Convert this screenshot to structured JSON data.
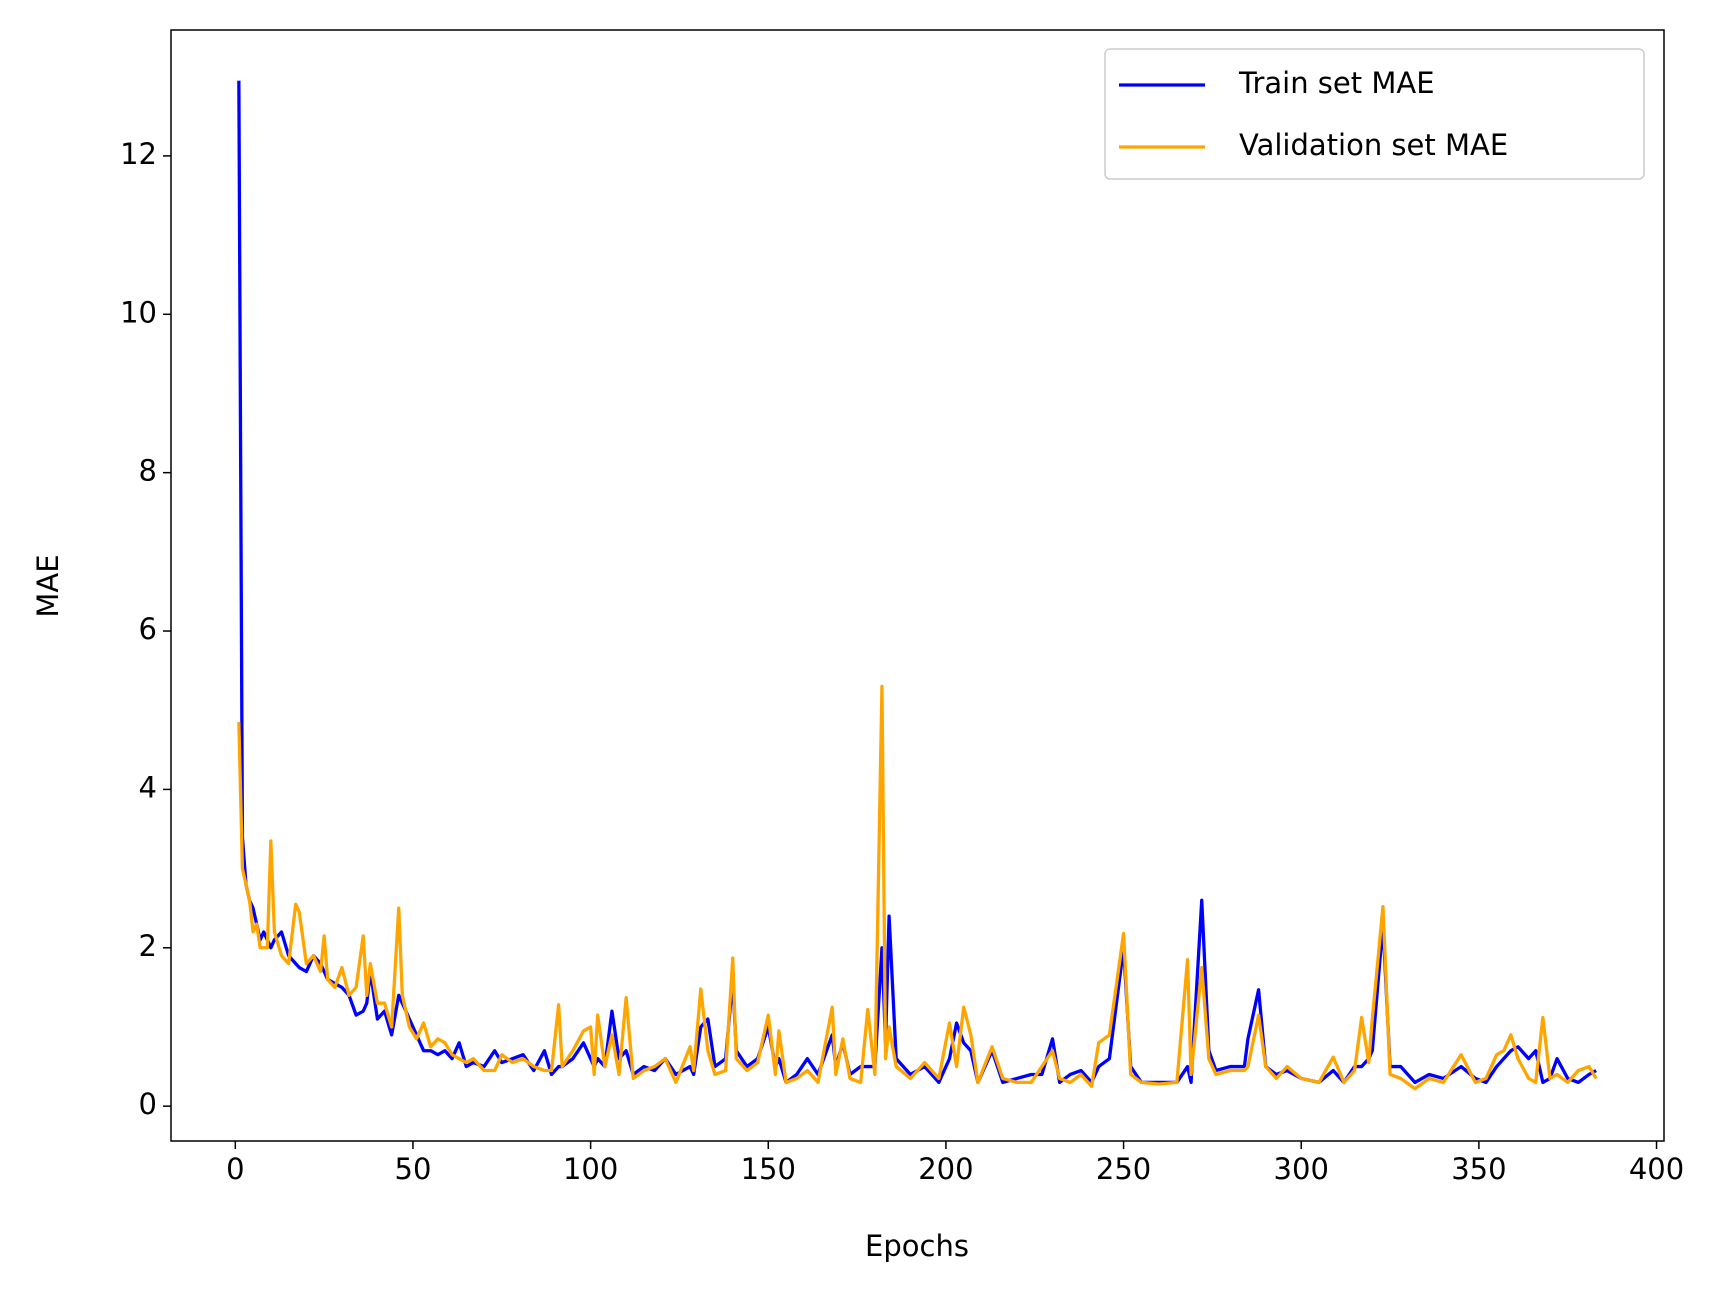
{
  "chart_data": {
    "type": "line",
    "x_label": "Epochs",
    "y_label": "MAE",
    "xlim": [
      -18.1,
      402.1
    ],
    "ylim": [
      -0.44,
      13.59
    ],
    "xticks": [
      0,
      50,
      100,
      150,
      200,
      250,
      300,
      350,
      400
    ],
    "yticks": [
      0,
      2,
      4,
      6,
      8,
      10,
      12
    ],
    "legend": "upper right",
    "grid": false,
    "x": [
      1,
      2,
      3,
      4,
      5,
      6,
      7,
      8,
      9,
      10,
      11,
      13,
      15,
      17,
      18,
      20,
      22,
      24,
      25,
      26,
      28,
      30,
      32,
      34,
      36,
      37,
      38,
      40,
      42,
      44,
      46,
      47,
      49,
      51,
      53,
      55,
      57,
      59,
      61,
      63,
      65,
      67,
      70,
      73,
      75,
      78,
      81,
      84,
      87,
      89,
      91,
      92,
      95,
      98,
      100,
      101,
      102,
      104,
      106,
      108,
      110,
      112,
      115,
      118,
      121,
      124,
      128,
      129,
      131,
      133,
      135,
      138,
      140,
      141,
      144,
      147,
      150,
      152,
      153,
      155,
      158,
      161,
      164,
      168,
      169,
      171,
      173,
      176,
      178,
      180,
      182,
      183,
      184,
      186,
      190,
      194,
      198,
      201,
      203,
      205,
      207,
      209,
      213,
      216,
      220,
      224,
      227,
      230,
      232,
      235,
      238,
      241,
      243,
      246,
      250,
      252,
      255,
      260,
      265,
      268,
      269,
      272,
      274,
      276,
      280,
      284,
      285,
      288,
      290,
      293,
      296,
      300,
      305,
      309,
      312,
      315,
      317,
      319,
      320,
      323,
      325,
      328,
      332,
      336,
      340,
      345,
      349,
      352,
      355,
      357,
      359,
      361,
      364,
      366,
      368,
      370,
      372,
      375,
      378,
      381,
      383
    ],
    "series": [
      {
        "name": "Train set MAE",
        "color": "#0000ff",
        "values": [
          12.95,
          3.4,
          2.8,
          2.6,
          2.5,
          2.3,
          2.1,
          2.2,
          2.1,
          2.0,
          2.1,
          2.2,
          1.9,
          1.8,
          1.75,
          1.7,
          1.9,
          1.8,
          1.7,
          1.6,
          1.55,
          1.5,
          1.4,
          1.15,
          1.2,
          1.3,
          1.7,
          1.1,
          1.2,
          0.9,
          1.4,
          1.3,
          1.1,
          0.9,
          0.7,
          0.7,
          0.65,
          0.7,
          0.6,
          0.8,
          0.5,
          0.55,
          0.5,
          0.7,
          0.55,
          0.6,
          0.65,
          0.45,
          0.7,
          0.4,
          0.5,
          0.5,
          0.6,
          0.8,
          0.6,
          0.5,
          0.6,
          0.5,
          1.2,
          0.6,
          0.7,
          0.4,
          0.5,
          0.45,
          0.6,
          0.4,
          0.5,
          0.4,
          1.0,
          1.1,
          0.5,
          0.6,
          1.6,
          0.7,
          0.5,
          0.6,
          1.0,
          0.5,
          0.6,
          0.3,
          0.4,
          0.6,
          0.4,
          0.9,
          0.5,
          0.8,
          0.4,
          0.5,
          0.5,
          0.5,
          2.0,
          0.8,
          2.4,
          0.6,
          0.4,
          0.5,
          0.3,
          0.6,
          1.05,
          0.8,
          0.7,
          0.3,
          0.7,
          0.3,
          0.35,
          0.4,
          0.4,
          0.85,
          0.3,
          0.4,
          0.45,
          0.3,
          0.5,
          0.6,
          2.0,
          0.5,
          0.3,
          0.3,
          0.3,
          0.5,
          0.3,
          2.6,
          0.7,
          0.45,
          0.5,
          0.5,
          0.85,
          1.47,
          0.5,
          0.4,
          0.45,
          0.35,
          0.3,
          0.45,
          0.3,
          0.5,
          0.5,
          0.6,
          0.7,
          2.3,
          0.5,
          0.5,
          0.3,
          0.4,
          0.35,
          0.5,
          0.35,
          0.3,
          0.5,
          0.6,
          0.7,
          0.75,
          0.6,
          0.7,
          0.3,
          0.35,
          0.6,
          0.35,
          0.3,
          0.4,
          0.45
        ]
      },
      {
        "name": "Validation set MAE",
        "color": "#ffa500",
        "values": [
          4.85,
          3.0,
          2.8,
          2.6,
          2.2,
          2.3,
          2.0,
          2.0,
          2.0,
          3.35,
          2.2,
          1.9,
          1.8,
          2.55,
          2.45,
          1.8,
          1.9,
          1.7,
          2.15,
          1.6,
          1.5,
          1.75,
          1.4,
          1.5,
          2.15,
          1.4,
          1.8,
          1.3,
          1.3,
          1.0,
          2.5,
          1.4,
          1.0,
          0.85,
          1.05,
          0.75,
          0.85,
          0.8,
          0.65,
          0.6,
          0.55,
          0.6,
          0.45,
          0.45,
          0.65,
          0.55,
          0.6,
          0.5,
          0.45,
          0.45,
          1.28,
          0.5,
          0.7,
          0.95,
          1.0,
          0.4,
          1.15,
          0.5,
          0.9,
          0.4,
          1.37,
          0.35,
          0.45,
          0.5,
          0.6,
          0.3,
          0.75,
          0.45,
          1.48,
          0.7,
          0.4,
          0.45,
          1.87,
          0.6,
          0.45,
          0.55,
          1.15,
          0.4,
          0.95,
          0.3,
          0.35,
          0.45,
          0.3,
          1.25,
          0.4,
          0.85,
          0.35,
          0.3,
          1.22,
          0.4,
          5.3,
          0.6,
          1.0,
          0.5,
          0.35,
          0.55,
          0.35,
          1.05,
          0.5,
          1.25,
          0.9,
          0.3,
          0.75,
          0.35,
          0.3,
          0.3,
          0.5,
          0.7,
          0.35,
          0.3,
          0.4,
          0.25,
          0.8,
          0.9,
          2.18,
          0.4,
          0.3,
          0.28,
          0.3,
          1.85,
          0.4,
          1.75,
          0.6,
          0.4,
          0.45,
          0.45,
          0.5,
          1.15,
          0.5,
          0.35,
          0.5,
          0.35,
          0.3,
          0.62,
          0.3,
          0.45,
          1.12,
          0.55,
          1.1,
          2.52,
          0.4,
          0.35,
          0.22,
          0.35,
          0.3,
          0.65,
          0.3,
          0.35,
          0.65,
          0.7,
          0.9,
          0.6,
          0.35,
          0.3,
          1.12,
          0.35,
          0.4,
          0.3,
          0.45,
          0.5,
          0.35
        ]
      }
    ]
  }
}
